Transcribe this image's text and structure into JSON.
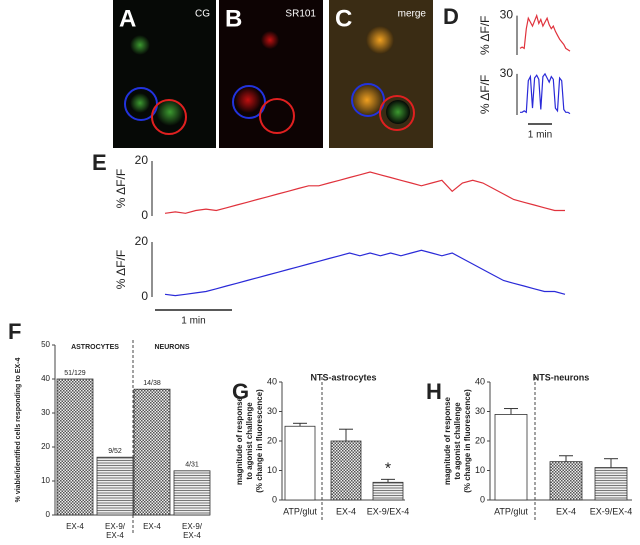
{
  "images": [
    {
      "letter": "A",
      "label": "CG"
    },
    {
      "letter": "B",
      "label": "SR101"
    },
    {
      "letter": "C",
      "label": "merge"
    }
  ],
  "chart_data": [
    {
      "type": "line",
      "panel": "D",
      "ylabel": "% ΔF/F",
      "ylim": [
        0,
        35
      ],
      "yticks": [
        30
      ],
      "series": [
        {
          "color": "#e0323c",
          "values": [
            5,
            6,
            5,
            20,
            28,
            25,
            22,
            26,
            30,
            24,
            27,
            22,
            25,
            28,
            23,
            20,
            22,
            18,
            15,
            12,
            10,
            8,
            5,
            4,
            3
          ]
        }
      ]
    },
    {
      "type": "line",
      "ylabel": "% ΔF/F",
      "ylim": [
        0,
        35
      ],
      "yticks": [
        30
      ],
      "scale_label": "1 min",
      "series": [
        {
          "color": "#2a2ad8",
          "values": [
            2,
            2,
            3,
            2,
            25,
            28,
            5,
            27,
            29,
            26,
            4,
            28,
            30,
            27,
            24,
            28,
            26,
            5,
            3,
            27,
            25,
            4,
            2,
            2,
            1
          ]
        }
      ]
    },
    {
      "type": "line",
      "panel": "E",
      "ylabel": "% ΔF/F",
      "ylim": [
        0,
        20
      ],
      "yticks": [
        0,
        20
      ],
      "series": [
        {
          "color": "#e0323c",
          "values": [
            1,
            1.5,
            1,
            2,
            2.5,
            2,
            3,
            4,
            5,
            6,
            7,
            8,
            9,
            10,
            11,
            11,
            12,
            13,
            14,
            15,
            16,
            15,
            14,
            13,
            12,
            11,
            12,
            13,
            9,
            12,
            13,
            12,
            10,
            8,
            6,
            5,
            4,
            3,
            2,
            2
          ]
        }
      ]
    },
    {
      "type": "line",
      "ylabel": "% ΔF/F",
      "ylim": [
        0,
        20
      ],
      "yticks": [
        0,
        20
      ],
      "scale_label": "1 min",
      "series": [
        {
          "color": "#2a2ad8",
          "values": [
            1,
            0.5,
            1,
            1.5,
            2,
            3,
            4,
            5,
            6,
            7,
            8,
            9,
            10,
            11,
            12,
            13,
            14,
            15,
            16,
            15,
            16,
            15,
            16,
            15,
            16,
            17,
            16,
            15,
            16,
            14,
            12,
            10,
            8,
            6,
            5,
            4,
            3,
            2,
            2,
            1
          ]
        }
      ]
    },
    {
      "type": "bar",
      "panel": "F",
      "ylabel": "% viable/identified cells responding to EX-4",
      "groups": [
        "ASTROCYTES",
        "NEURONS"
      ],
      "categories": [
        "EX-4",
        "EX-9/ EX-4",
        "EX-4",
        "EX-9/ EX-4"
      ],
      "values": [
        40,
        17,
        37,
        13
      ],
      "annotations": [
        "51/129",
        "9/52",
        "14/38",
        "4/31"
      ],
      "patterns": [
        "checker",
        "lines",
        "checker",
        "lines"
      ],
      "ylim": [
        0,
        50
      ],
      "yticks": [
        0,
        10,
        20,
        30,
        40,
        50
      ]
    },
    {
      "type": "bar",
      "panel": "G",
      "title": "NTS-astrocytes",
      "ylabel": [
        "magnitude of response",
        "to agonist challenge",
        "(% change in fluorescence)"
      ],
      "categories": [
        "ATP/glut",
        "EX-4",
        "EX-9/EX-4"
      ],
      "values": [
        25,
        20,
        6
      ],
      "errors": [
        1,
        4,
        1
      ],
      "marker": "*",
      "patterns": [
        "white",
        "checker",
        "lines"
      ],
      "ylim": [
        0,
        40
      ],
      "yticks": [
        0,
        10,
        20,
        30,
        40
      ]
    },
    {
      "type": "bar",
      "panel": "H",
      "title": "NTS-neurons",
      "ylabel": [
        "magnitude of response",
        "to agonist challenge",
        "(% change in fluorescence)"
      ],
      "categories": [
        "ATP/glut",
        "EX-4",
        "EX-9/EX-4"
      ],
      "values": [
        29,
        13,
        11
      ],
      "errors": [
        2,
        2,
        3
      ],
      "patterns": [
        "white",
        "checker",
        "lines"
      ],
      "ylim": [
        0,
        40
      ],
      "yticks": [
        0,
        10,
        20,
        30,
        40
      ]
    }
  ]
}
